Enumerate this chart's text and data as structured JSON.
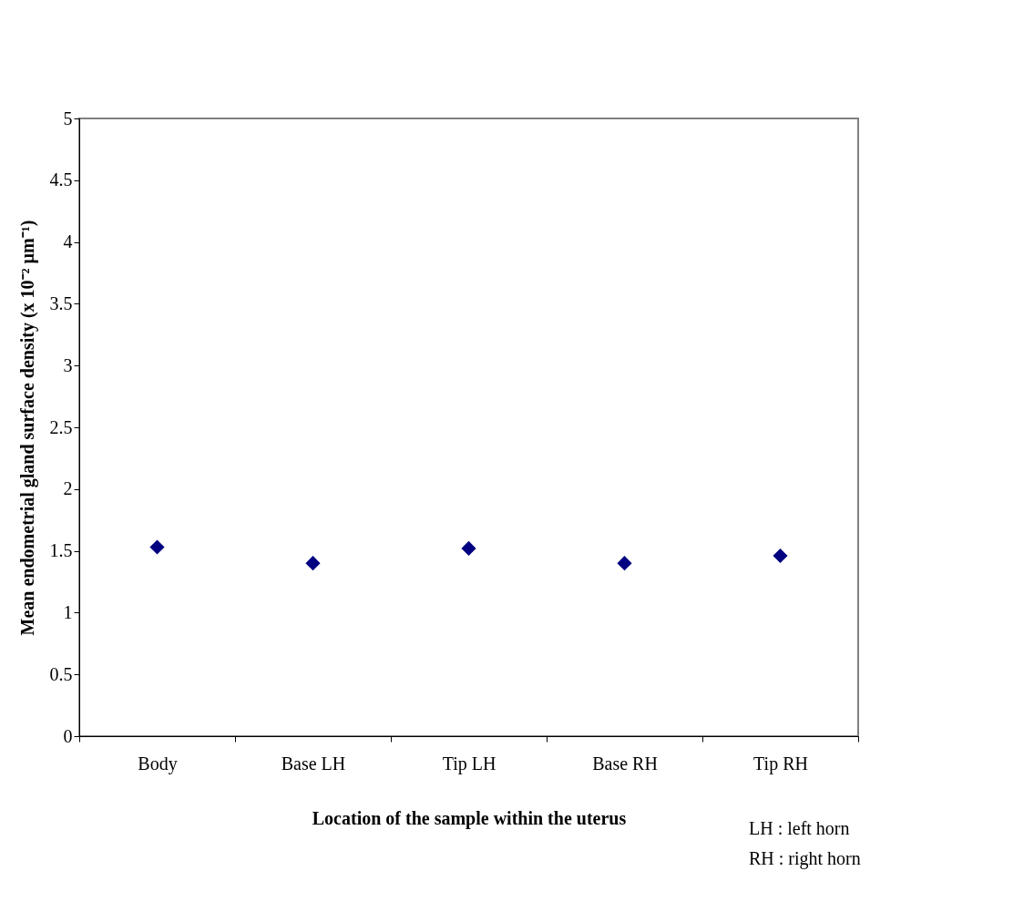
{
  "chart_data": {
    "type": "scatter",
    "xlabel": "Location of the sample within the uterus",
    "ylabel": "Mean endometrial gland surface density (x 10⁻² µm⁻¹)",
    "categories": [
      "Body",
      "Base LH",
      "Tip LH",
      "Base RH",
      "Tip RH"
    ],
    "series": [
      {
        "color": "#000080",
        "values": [
          1.53,
          1.4,
          1.52,
          1.4,
          1.46
        ]
      }
    ],
    "ylim": [
      0,
      5
    ],
    "yticks": [
      0,
      0.5,
      1,
      1.5,
      2,
      2.5,
      3,
      3.5,
      4,
      4.5,
      5
    ],
    "marker": "diamond",
    "grid": false,
    "annotations": [
      "LH : left horn",
      "RH : right horn"
    ]
  }
}
